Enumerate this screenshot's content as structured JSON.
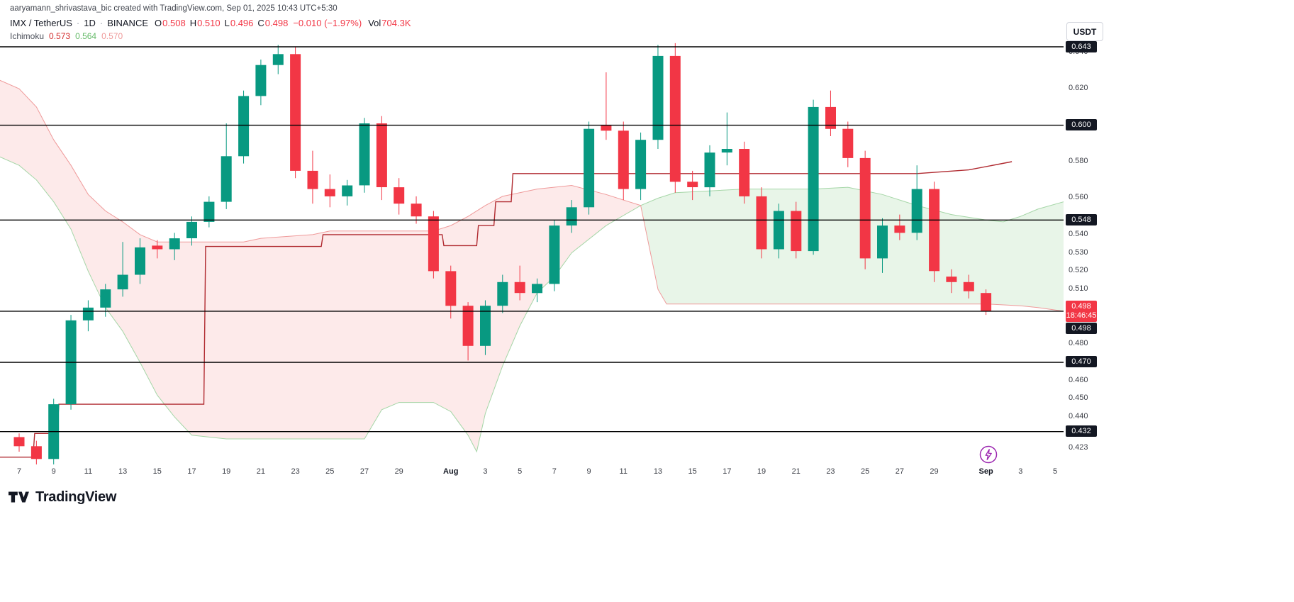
{
  "watermark": "aaryamann_shrivastava_bic created with TradingView.com, Sep 01, 2025 10:43 UTC+5:30",
  "toolbar": {
    "currency_label": "USDT"
  },
  "legend": {
    "symbol": "IMX / TetherUS",
    "separator": "·",
    "interval": "1D",
    "exchange": "BINANCE",
    "open_label": "O",
    "open": "0.508",
    "high_label": "H",
    "high": "0.510",
    "low_label": "L",
    "low": "0.496",
    "close_label": "C",
    "close": "0.498",
    "change": "−0.010 (−1.97%)",
    "volume_label": "Vol",
    "volume": "704.3K",
    "indicator": {
      "name": "Ichimoku",
      "value1": "0.573",
      "value2": "0.564",
      "value3": "0.570"
    }
  },
  "price_scale": {
    "plain_labels": [
      "0.640",
      "0.620",
      "0.580",
      "0.560",
      "0.540",
      "0.530",
      "0.520",
      "0.510",
      "0.480",
      "0.460",
      "0.450",
      "0.440",
      "0.423"
    ],
    "level_labels": [
      "0.643",
      "0.600",
      "0.548",
      "0.498",
      "0.470",
      "0.432"
    ],
    "last_price": "0.498",
    "countdown": "18:46:45"
  },
  "time_scale": {
    "ticks": [
      [
        0,
        "7"
      ],
      [
        2,
        "9"
      ],
      [
        4,
        "11"
      ],
      [
        6,
        "13"
      ],
      [
        8,
        "15"
      ],
      [
        10,
        "17"
      ],
      [
        12,
        "19"
      ],
      [
        14,
        "21"
      ],
      [
        16,
        "23"
      ],
      [
        18,
        "25"
      ],
      [
        20,
        "27"
      ],
      [
        22,
        "29"
      ],
      [
        25,
        "Aug"
      ],
      [
        27,
        "3"
      ],
      [
        29,
        "5"
      ],
      [
        31,
        "7"
      ],
      [
        33,
        "9"
      ],
      [
        35,
        "11"
      ],
      [
        37,
        "13"
      ],
      [
        39,
        "15"
      ],
      [
        41,
        "17"
      ],
      [
        43,
        "19"
      ],
      [
        45,
        "21"
      ],
      [
        47,
        "23"
      ],
      [
        49,
        "25"
      ],
      [
        51,
        "27"
      ],
      [
        53,
        "29"
      ],
      [
        56,
        "Sep"
      ],
      [
        58,
        "3"
      ],
      [
        60,
        "5"
      ]
    ]
  },
  "footer": {
    "brand": "TradingView"
  },
  "colors": {
    "up": "#089981",
    "down": "#f23645",
    "kijun_line": "#b02a30",
    "senkou_a": "#a5d6a7",
    "senkou_b": "#ef9a9a",
    "cloud_bear": "rgba(239,83,80,0.12)",
    "cloud_bull": "rgba(76,175,80,0.13)",
    "level_line": "#000000",
    "label_bg_dark": "#131722",
    "label_bg_last": "#f23645",
    "accent_purple": "#9c27b0"
  },
  "chart_data": {
    "type": "candlestick",
    "title": "IMX / TetherUS · 1D · BINANCE",
    "interval": "1D",
    "currency": "USDT",
    "y_domain": [
      0.414,
      0.65
    ],
    "x_domain": [
      -1.2,
      60.5
    ],
    "levels": [
      0.643,
      0.6,
      0.548,
      0.498,
      0.47,
      0.432
    ],
    "columns": [
      "date",
      "open",
      "high",
      "low",
      "close"
    ],
    "candles": [
      [
        "Jul 7",
        0.429,
        0.431,
        0.421,
        0.424
      ],
      [
        "Jul 8",
        0.424,
        0.427,
        0.414,
        0.417
      ],
      [
        "Jul 9",
        0.417,
        0.45,
        0.414,
        0.447
      ],
      [
        "Jul 10",
        0.447,
        0.496,
        0.444,
        0.493
      ],
      [
        "Jul 11",
        0.493,
        0.504,
        0.487,
        0.5
      ],
      [
        "Jul 12",
        0.5,
        0.513,
        0.495,
        0.51
      ],
      [
        "Jul 13",
        0.51,
        0.536,
        0.506,
        0.518
      ],
      [
        "Jul 14",
        0.518,
        0.538,
        0.513,
        0.533
      ],
      [
        "Jul 15",
        0.534,
        0.537,
        0.527,
        0.532
      ],
      [
        "Jul 16",
        0.532,
        0.541,
        0.526,
        0.538
      ],
      [
        "Jul 17",
        0.538,
        0.55,
        0.534,
        0.547
      ],
      [
        "Jul 18",
        0.547,
        0.561,
        0.544,
        0.558
      ],
      [
        "Jul 19",
        0.558,
        0.601,
        0.554,
        0.583
      ],
      [
        "Jul 20",
        0.583,
        0.619,
        0.579,
        0.616
      ],
      [
        "Jul 21",
        0.616,
        0.636,
        0.611,
        0.633
      ],
      [
        "Jul 22",
        0.633,
        0.644,
        0.628,
        0.639
      ],
      [
        "Jul 23",
        0.639,
        0.643,
        0.571,
        0.575
      ],
      [
        "Jul 24",
        0.575,
        0.586,
        0.557,
        0.565
      ],
      [
        "Jul 25",
        0.565,
        0.573,
        0.555,
        0.561
      ],
      [
        "Jul 26",
        0.561,
        0.57,
        0.556,
        0.567
      ],
      [
        "Jul 27",
        0.567,
        0.604,
        0.563,
        0.601
      ],
      [
        "Jul 28",
        0.601,
        0.605,
        0.559,
        0.566
      ],
      [
        "Jul 29",
        0.566,
        0.571,
        0.551,
        0.557
      ],
      [
        "Jul 30",
        0.557,
        0.561,
        0.546,
        0.55
      ],
      [
        "Jul 31",
        0.55,
        0.553,
        0.516,
        0.52
      ],
      [
        "Aug 1",
        0.52,
        0.523,
        0.494,
        0.501
      ],
      [
        "Aug 2",
        0.501,
        0.503,
        0.471,
        0.479
      ],
      [
        "Aug 3",
        0.479,
        0.504,
        0.474,
        0.501
      ],
      [
        "Aug 4",
        0.501,
        0.518,
        0.497,
        0.514
      ],
      [
        "Aug 5",
        0.514,
        0.523,
        0.504,
        0.508
      ],
      [
        "Aug 6",
        0.508,
        0.516,
        0.503,
        0.513
      ],
      [
        "Aug 7",
        0.513,
        0.548,
        0.509,
        0.545
      ],
      [
        "Aug 8",
        0.545,
        0.559,
        0.541,
        0.555
      ],
      [
        "Aug 9",
        0.555,
        0.602,
        0.551,
        0.598
      ],
      [
        "Aug 10",
        0.6,
        0.629,
        0.592,
        0.597
      ],
      [
        "Aug 11",
        0.597,
        0.602,
        0.559,
        0.565
      ],
      [
        "Aug 12",
        0.565,
        0.596,
        0.559,
        0.592
      ],
      [
        "Aug 13",
        0.592,
        0.644,
        0.587,
        0.638
      ],
      [
        "Aug 14",
        0.638,
        0.645,
        0.563,
        0.569
      ],
      [
        "Aug 15",
        0.569,
        0.575,
        0.559,
        0.566
      ],
      [
        "Aug 16",
        0.566,
        0.589,
        0.561,
        0.585
      ],
      [
        "Aug 17",
        0.585,
        0.607,
        0.578,
        0.587
      ],
      [
        "Aug 18",
        0.587,
        0.591,
        0.557,
        0.561
      ],
      [
        "Aug 19",
        0.561,
        0.566,
        0.527,
        0.532
      ],
      [
        "Aug 20",
        0.532,
        0.557,
        0.527,
        0.553
      ],
      [
        "Aug 21",
        0.553,
        0.558,
        0.527,
        0.531
      ],
      [
        "Aug 22",
        0.531,
        0.614,
        0.529,
        0.61
      ],
      [
        "Aug 23",
        0.61,
        0.619,
        0.594,
        0.598
      ],
      [
        "Aug 24",
        0.598,
        0.602,
        0.577,
        0.582
      ],
      [
        "Aug 25",
        0.582,
        0.586,
        0.521,
        0.527
      ],
      [
        "Aug 26",
        0.527,
        0.549,
        0.519,
        0.545
      ],
      [
        "Aug 27",
        0.545,
        0.551,
        0.537,
        0.541
      ],
      [
        "Aug 28",
        0.541,
        0.578,
        0.537,
        0.565
      ],
      [
        "Aug 29",
        0.565,
        0.569,
        0.514,
        0.52
      ],
      [
        "Aug 30",
        0.517,
        0.521,
        0.508,
        0.514
      ],
      [
        "Aug 31",
        0.514,
        0.518,
        0.505,
        0.509
      ],
      [
        "Sep 1",
        0.508,
        0.51,
        0.496,
        0.498
      ]
    ],
    "ichimoku": {
      "legend_values": [
        0.573,
        0.564,
        0.57
      ],
      "cross_index": 36,
      "senkou_a": [
        [
          -1.2,
          0.583
        ],
        [
          0,
          0.578
        ],
        [
          1,
          0.57
        ],
        [
          2,
          0.558
        ],
        [
          3,
          0.543
        ],
        [
          4,
          0.52
        ],
        [
          5,
          0.5
        ],
        [
          6,
          0.487
        ],
        [
          7,
          0.47
        ],
        [
          8,
          0.452
        ],
        [
          9,
          0.44
        ],
        [
          10,
          0.43
        ],
        [
          12,
          0.428
        ],
        [
          20,
          0.428
        ],
        [
          21,
          0.444
        ],
        [
          22,
          0.448
        ],
        [
          24,
          0.448
        ],
        [
          25,
          0.443
        ],
        [
          26,
          0.43
        ],
        [
          26.5,
          0.421
        ],
        [
          27,
          0.442
        ],
        [
          28,
          0.468
        ],
        [
          29,
          0.49
        ],
        [
          30,
          0.508
        ],
        [
          31,
          0.517
        ],
        [
          32,
          0.53
        ],
        [
          34,
          0.545
        ],
        [
          36,
          0.556
        ],
        [
          37,
          0.56
        ],
        [
          38,
          0.563
        ],
        [
          40,
          0.564
        ],
        [
          42,
          0.565
        ],
        [
          46,
          0.565
        ],
        [
          48,
          0.566
        ],
        [
          50,
          0.562
        ],
        [
          52,
          0.556
        ],
        [
          54,
          0.551
        ],
        [
          56,
          0.548
        ],
        [
          57,
          0.547
        ],
        [
          58,
          0.55
        ],
        [
          59,
          0.554
        ],
        [
          60.5,
          0.558
        ]
      ],
      "senkou_b": [
        [
          -1.2,
          0.625
        ],
        [
          0,
          0.62
        ],
        [
          1,
          0.61
        ],
        [
          2,
          0.592
        ],
        [
          3,
          0.578
        ],
        [
          4,
          0.562
        ],
        [
          5,
          0.553
        ],
        [
          6,
          0.547
        ],
        [
          7,
          0.54
        ],
        [
          8,
          0.536
        ],
        [
          13,
          0.536
        ],
        [
          14,
          0.538
        ],
        [
          17,
          0.54
        ],
        [
          18,
          0.542
        ],
        [
          24,
          0.542
        ],
        [
          25,
          0.545
        ],
        [
          26,
          0.55
        ],
        [
          27,
          0.556
        ],
        [
          28,
          0.561
        ],
        [
          30,
          0.565
        ],
        [
          32,
          0.567
        ],
        [
          34,
          0.562
        ],
        [
          36,
          0.556
        ],
        [
          37,
          0.51
        ],
        [
          37.5,
          0.502
        ],
        [
          56,
          0.502
        ],
        [
          58,
          0.501
        ],
        [
          59,
          0.5
        ],
        [
          60.5,
          0.498
        ]
      ],
      "kijun": [
        [
          -1.2,
          0.418
        ],
        [
          0.8,
          0.418
        ],
        [
          0.9,
          0.431
        ],
        [
          2.2,
          0.431
        ],
        [
          2.3,
          0.447
        ],
        [
          10.7,
          0.447
        ],
        [
          10.8,
          0.5335
        ],
        [
          17.5,
          0.5335
        ],
        [
          17.6,
          0.54
        ],
        [
          24.5,
          0.54
        ],
        [
          24.6,
          0.534
        ],
        [
          26.5,
          0.534
        ],
        [
          26.6,
          0.545
        ],
        [
          27.5,
          0.545
        ],
        [
          27.6,
          0.558
        ],
        [
          28.5,
          0.558
        ],
        [
          28.6,
          0.5735
        ],
        [
          52,
          0.5735
        ],
        [
          55,
          0.5755
        ],
        [
          57.5,
          0.58
        ]
      ]
    }
  }
}
